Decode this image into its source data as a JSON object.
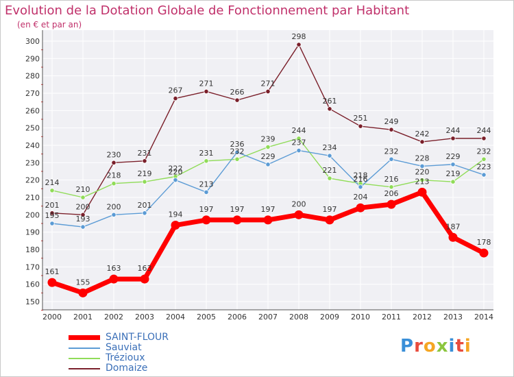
{
  "chart_data": {
    "type": "line",
    "title": "Evolution de la Dotation Globale de Fonctionnement par Habitant",
    "subtitle": "(en € et par an)",
    "x": [
      "2000",
      "2001",
      "2002",
      "2003",
      "2004",
      "2005",
      "2006",
      "2007",
      "2008",
      "2009",
      "2010",
      "2011",
      "2012",
      "2013",
      "2014"
    ],
    "ylim": [
      150,
      300
    ],
    "yticks": [
      "150",
      "160",
      "170",
      "180",
      "190",
      "200",
      "210",
      "220",
      "230",
      "240",
      "250",
      "260",
      "270",
      "280",
      "290",
      "300"
    ],
    "grid": true,
    "legend_position": "bottom-left",
    "series": [
      {
        "name": "Domaize",
        "color": "#7a1f2a",
        "values": [
          201,
          200,
          230,
          231,
          267,
          271,
          266,
          271,
          298,
          261,
          251,
          249,
          242,
          244,
          244
        ]
      },
      {
        "name": "Trézioux",
        "color": "#90dc58",
        "values": [
          214,
          210,
          218,
          219,
          222,
          231,
          232,
          239,
          244,
          221,
          218,
          216,
          220,
          219,
          232
        ]
      },
      {
        "name": "Sauviat",
        "color": "#5b9bd5",
        "values": [
          195,
          193,
          200,
          201,
          220,
          213,
          236,
          229,
          237,
          234,
          216,
          232,
          228,
          229,
          223
        ]
      },
      {
        "name": "SAINT-FLOUR",
        "color": "#ff0000",
        "values": [
          161,
          155,
          163,
          163,
          194,
          197,
          197,
          197,
          200,
          197,
          204,
          206,
          213,
          187,
          178
        ]
      }
    ],
    "labels": {
      "Domaize": [
        "201",
        "200",
        "230",
        "231",
        "267",
        "271",
        "266",
        "271",
        "298",
        "261",
        "251",
        "249",
        "242",
        "244",
        "244"
      ],
      "Trézioux": [
        "214",
        "210",
        "218",
        "219",
        "222",
        "231",
        "232",
        "239",
        "244",
        "221",
        "218",
        "216",
        "220",
        "219",
        "232"
      ],
      "Sauviat": [
        "195",
        "193",
        "200",
        "201",
        "220",
        "213",
        "236",
        "229",
        "237",
        "234",
        "216",
        "232",
        "228",
        "229",
        "223"
      ],
      "SAINT-FLOUR": [
        "161",
        "155",
        "163",
        "163",
        "194",
        "197",
        "197",
        "197",
        "200",
        "197",
        "204",
        "206",
        "213",
        "187",
        "178"
      ]
    }
  },
  "legend": {
    "items": [
      {
        "label": "SAINT-FLOUR",
        "color": "#ff0000"
      },
      {
        "label": "Sauviat",
        "color": "#5b9bd5"
      },
      {
        "label": "Trézioux",
        "color": "#90dc58"
      },
      {
        "label": "Domaize",
        "color": "#7a1f2a"
      }
    ]
  },
  "logo": {
    "text": "Proxiti"
  }
}
